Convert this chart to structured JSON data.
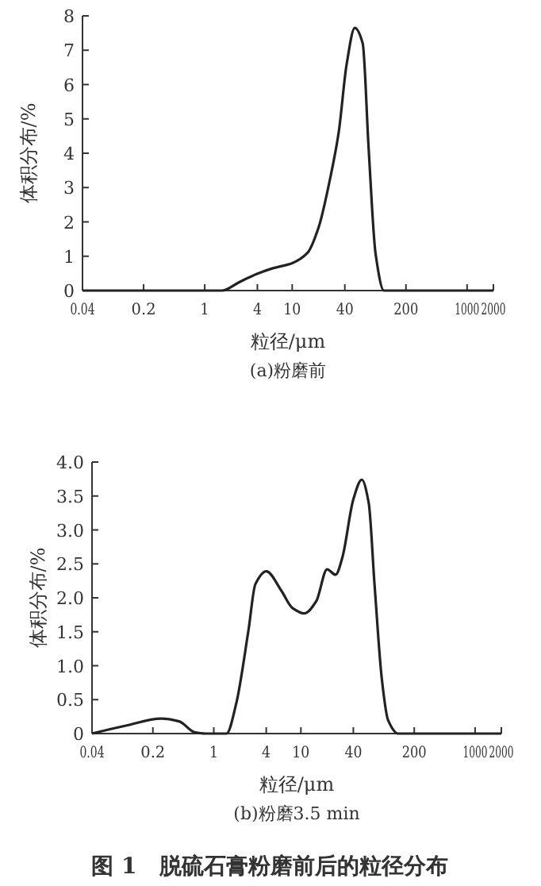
{
  "chart_data": [
    {
      "type": "line",
      "title": "(a)粉磨前",
      "xlabel": "粒径/μm",
      "ylabel": "体积分布/%",
      "log": "x",
      "xlim": [
        0.04,
        2000
      ],
      "xticks": [
        0.04,
        0.2,
        1,
        4,
        10,
        40,
        200,
        1000,
        2000
      ],
      "ylim": [
        0,
        8
      ],
      "yticks": [
        0,
        1,
        2,
        3,
        4,
        5,
        6,
        7,
        8
      ],
      "series": [
        {
          "color": "#222222",
          "x": [
            0.04,
            1,
            1.58,
            2.5,
            4,
            6,
            10,
            15,
            20,
            27.7,
            34,
            42,
            52,
            64,
            75,
            90,
            112,
            200,
            2000
          ],
          "values": [
            0,
            0,
            0,
            0.25,
            0.49,
            0.65,
            0.8,
            1.1,
            1.83,
            3.37,
            4.6,
            6.6,
            7.65,
            7.2,
            4.1,
            1.06,
            0,
            0,
            0
          ]
        }
      ]
    },
    {
      "type": "line",
      "title": "(b)粉磨3.5 min",
      "xlabel": "粒径/μm",
      "ylabel": "体积分布/%",
      "log": "x",
      "xlim": [
        0.04,
        2000
      ],
      "xticks": [
        0.04,
        0.2,
        1,
        4,
        10,
        40,
        200,
        1000,
        2000
      ],
      "ylim": [
        0,
        4
      ],
      "yticks": [
        0,
        0.5,
        {
          "value": 1,
          "label": "1.0"
        },
        1.5,
        {
          "value": 2,
          "label": "2.0"
        },
        2.5,
        {
          "value": 3,
          "label": "3.0"
        },
        3.5,
        {
          "value": 4,
          "label": "4.0"
        }
      ],
      "annotations": [
        "图 1　脱硫石膏粉磨前后的粒径分布"
      ],
      "series": [
        {
          "color": "#222222",
          "x": [
            0.04,
            0.1,
            0.25,
            0.4,
            0.6,
            0.8,
            1.4,
            1.8,
            2.5,
            3,
            4,
            6,
            8,
            11,
            15,
            20,
            25,
            30,
            40,
            50,
            60,
            70,
            85,
            100,
            130,
            2000
          ],
          "values": [
            0,
            0.12,
            0.22,
            0.18,
            0.02,
            0,
            0,
            0.43,
            1.52,
            2.2,
            2.39,
            2.1,
            1.85,
            1.77,
            1.95,
            2.42,
            2.34,
            2.6,
            3.45,
            3.74,
            3.4,
            2.2,
            0.8,
            0.2,
            0,
            0
          ]
        }
      ]
    }
  ]
}
